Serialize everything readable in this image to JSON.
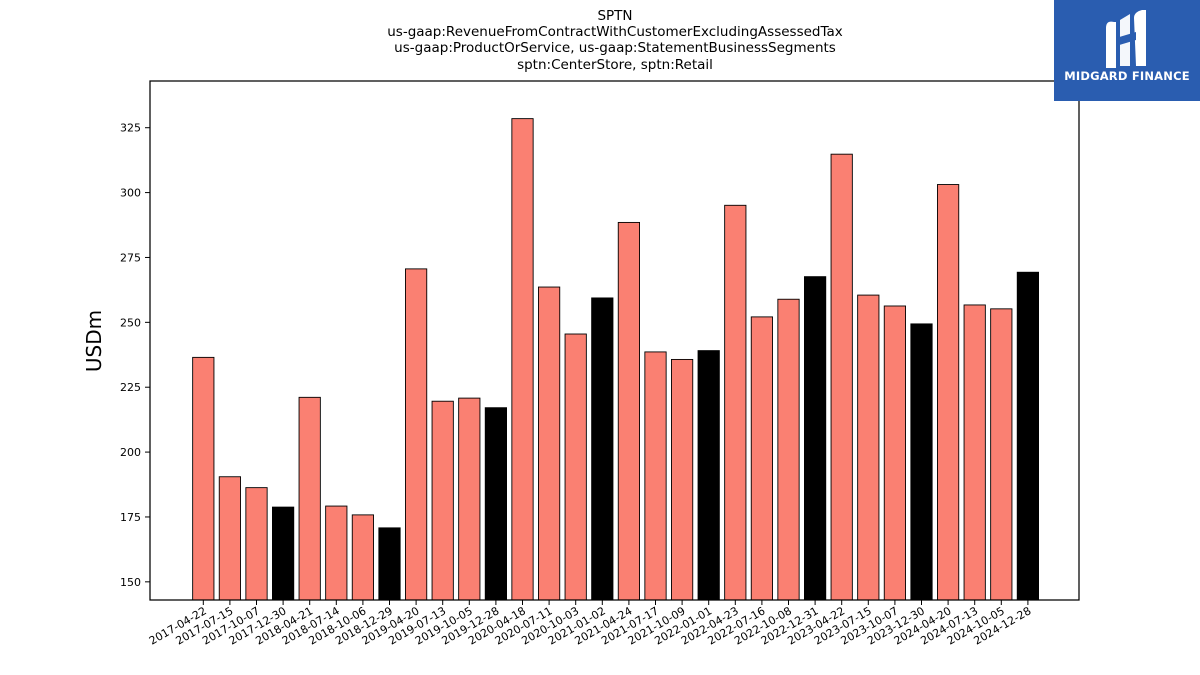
{
  "brand": {
    "name": "MIDGARD FINANCE",
    "icon": "midgard-logo-icon",
    "background_color": "#2a5db0"
  },
  "chart_data": {
    "type": "bar",
    "title_lines": [
      "SPTN",
      "us-gaap:RevenueFromContractWithCustomerExcludingAssessedTax",
      "us-gaap:ProductOrService, us-gaap:StatementBusinessSegments",
      "sptn:CenterStore, sptn:Retail"
    ],
    "ylabel": "USDm",
    "xlabel": "",
    "ylim": [
      143,
      343
    ],
    "yticks": [
      150,
      175,
      200,
      225,
      250,
      275,
      300,
      325
    ],
    "grid": false,
    "colors": {
      "quarter": "#fa8072",
      "year_end": "#000000",
      "edge": "#000000"
    },
    "categories": [
      "2017-04-22",
      "2017-07-15",
      "2017-10-07",
      "2017-12-30",
      "2018-04-21",
      "2018-07-14",
      "2018-10-06",
      "2018-12-29",
      "2019-04-20",
      "2019-07-13",
      "2019-10-05",
      "2019-12-28",
      "2020-04-18",
      "2020-07-11",
      "2020-10-03",
      "2021-01-02",
      "2021-04-24",
      "2021-07-17",
      "2021-10-09",
      "2022-01-01",
      "2022-04-23",
      "2022-07-16",
      "2022-10-08",
      "2022-12-31",
      "2023-04-22",
      "2023-07-15",
      "2023-10-07",
      "2023-12-30",
      "2024-04-20",
      "2024-07-13",
      "2024-10-05",
      "2024-12-28"
    ],
    "values": [
      236.5,
      190.5,
      186.3,
      178.8,
      221.1,
      179.2,
      175.8,
      170.8,
      270.6,
      219.6,
      220.8,
      217.1,
      328.5,
      263.6,
      245.5,
      259.4,
      288.5,
      238.6,
      235.7,
      239.1,
      295.1,
      252.1,
      258.9,
      267.6,
      314.8,
      260.5,
      256.3,
      249.4,
      303.1,
      256.7,
      255.2,
      269.3
    ],
    "year_end": [
      false,
      false,
      false,
      true,
      false,
      false,
      false,
      true,
      false,
      false,
      false,
      true,
      false,
      false,
      false,
      true,
      false,
      false,
      false,
      true,
      false,
      false,
      false,
      true,
      false,
      false,
      false,
      true,
      false,
      false,
      false,
      true
    ]
  }
}
